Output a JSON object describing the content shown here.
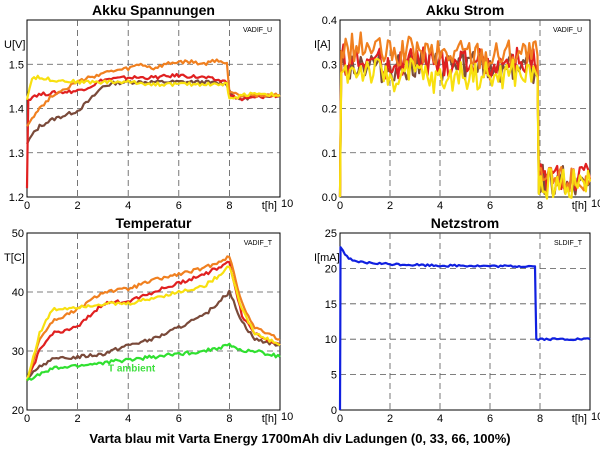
{
  "figure": {
    "caption": "Varta blau mit Varta Energy 1700mAh div Ladungen (0, 33, 66, 100%)"
  },
  "chart_data": [
    {
      "type": "line",
      "title": "Akku Spannungen",
      "ylabel": "U[V]",
      "xlabel": "t[h]",
      "tag": "VADIF_U",
      "xlim": [
        0,
        10
      ],
      "ylim": [
        1.2,
        1.6
      ],
      "xticks": [
        "0",
        "2",
        "4",
        "6",
        "8",
        "10"
      ],
      "yticks": [
        "1.2",
        "1.3",
        "1.4",
        "1.5"
      ],
      "grid": true,
      "series": [
        {
          "color": "#7a4a3a",
          "points": [
            [
              0,
              1.32
            ],
            [
              0.2,
              1.34
            ],
            [
              0.5,
              1.36
            ],
            [
              1,
              1.375
            ],
            [
              1.5,
              1.385
            ],
            [
              2,
              1.395
            ],
            [
              2.5,
              1.42
            ],
            [
              3,
              1.45
            ],
            [
              3.5,
              1.458
            ],
            [
              4,
              1.46
            ],
            [
              5,
              1.46
            ],
            [
              6,
              1.46
            ],
            [
              7,
              1.46
            ],
            [
              7.9,
              1.455
            ],
            [
              8,
              1.44
            ],
            [
              8.3,
              1.42
            ],
            [
              8.8,
              1.425
            ],
            [
              9.5,
              1.43
            ],
            [
              10,
              1.43
            ]
          ]
        },
        {
          "color": "#e02020",
          "points": [
            [
              0,
              1.22
            ],
            [
              0.05,
              1.42
            ],
            [
              0.3,
              1.43
            ],
            [
              1,
              1.435
            ],
            [
              2,
              1.44
            ],
            [
              2.5,
              1.45
            ],
            [
              3,
              1.465
            ],
            [
              4,
              1.47
            ],
            [
              5,
              1.47
            ],
            [
              6,
              1.475
            ],
            [
              7,
              1.47
            ],
            [
              7.9,
              1.46
            ],
            [
              8,
              1.43
            ],
            [
              8.5,
              1.42
            ],
            [
              9,
              1.425
            ],
            [
              10,
              1.43
            ]
          ]
        },
        {
          "color": "#f08020",
          "points": [
            [
              0,
              1.36
            ],
            [
              0.2,
              1.38
            ],
            [
              0.5,
              1.4
            ],
            [
              1,
              1.43
            ],
            [
              1.5,
              1.445
            ],
            [
              2,
              1.46
            ],
            [
              2.5,
              1.47
            ],
            [
              3,
              1.48
            ],
            [
              3.5,
              1.485
            ],
            [
              4,
              1.49
            ],
            [
              4.5,
              1.5
            ],
            [
              5,
              1.49
            ],
            [
              5.5,
              1.5
            ],
            [
              6,
              1.505
            ],
            [
              6.5,
              1.505
            ],
            [
              7,
              1.5
            ],
            [
              7.5,
              1.51
            ],
            [
              7.9,
              1.5
            ],
            [
              8,
              1.44
            ],
            [
              8.5,
              1.43
            ],
            [
              9,
              1.43
            ],
            [
              10,
              1.43
            ]
          ]
        },
        {
          "color": "#f8e010",
          "points": [
            [
              0,
              1.42
            ],
            [
              0.2,
              1.47
            ],
            [
              0.5,
              1.47
            ],
            [
              1,
              1.465
            ],
            [
              2,
              1.46
            ],
            [
              3,
              1.46
            ],
            [
              4,
              1.46
            ],
            [
              5,
              1.455
            ],
            [
              6,
              1.455
            ],
            [
              7,
              1.455
            ],
            [
              7.9,
              1.455
            ],
            [
              8,
              1.42
            ],
            [
              8.5,
              1.43
            ],
            [
              9,
              1.435
            ],
            [
              10,
              1.43
            ]
          ]
        }
      ]
    },
    {
      "type": "line",
      "title": "Akku Strom",
      "ylabel": "I[A]",
      "xlabel": "t[h]",
      "tag": "VADIF_U",
      "xlim": [
        0,
        10
      ],
      "ylim": [
        0,
        0.4
      ],
      "xticks": [
        "0",
        "2",
        "4",
        "6",
        "8",
        "10"
      ],
      "yticks": [
        "0.0",
        "0.1",
        "0.2",
        "0.3",
        "0.4"
      ],
      "grid": true,
      "series": [
        {
          "color": "#7a4a3a",
          "points": [
            [
              0,
              0.0
            ],
            [
              0.05,
              0.3
            ],
            [
              1,
              0.3
            ],
            [
              2,
              0.29
            ],
            [
              3,
              0.3
            ],
            [
              4,
              0.29
            ],
            [
              5,
              0.3
            ],
            [
              6,
              0.29
            ],
            [
              7,
              0.3
            ],
            [
              7.9,
              0.29
            ],
            [
              7.95,
              0.04
            ],
            [
              8.5,
              0.04
            ],
            [
              9,
              0.04
            ],
            [
              10,
              0.04
            ]
          ]
        },
        {
          "color": "#e02020",
          "points": [
            [
              0,
              0.0
            ],
            [
              0.05,
              0.31
            ],
            [
              1,
              0.31
            ],
            [
              2,
              0.3
            ],
            [
              3,
              0.31
            ],
            [
              4,
              0.3
            ],
            [
              5,
              0.31
            ],
            [
              6,
              0.3
            ],
            [
              7,
              0.31
            ],
            [
              7.9,
              0.3
            ],
            [
              7.95,
              0.04
            ],
            [
              10,
              0.04
            ]
          ]
        },
        {
          "color": "#f08020",
          "points": [
            [
              0,
              0.0
            ],
            [
              0.05,
              0.33
            ],
            [
              1,
              0.34
            ],
            [
              2,
              0.32
            ],
            [
              3,
              0.33
            ],
            [
              4,
              0.32
            ],
            [
              5,
              0.33
            ],
            [
              6,
              0.32
            ],
            [
              7,
              0.33
            ],
            [
              7.9,
              0.32
            ],
            [
              7.95,
              0.04
            ],
            [
              10,
              0.04
            ]
          ]
        },
        {
          "color": "#f8e010",
          "points": [
            [
              0,
              0.0
            ],
            [
              0.05,
              0.28
            ],
            [
              1,
              0.29
            ],
            [
              2,
              0.27
            ],
            [
              3,
              0.28
            ],
            [
              4,
              0.26
            ],
            [
              5,
              0.28
            ],
            [
              6,
              0.27
            ],
            [
              7,
              0.28
            ],
            [
              7.9,
              0.27
            ],
            [
              7.95,
              0.03
            ],
            [
              10,
              0.035
            ]
          ]
        }
      ]
    },
    {
      "type": "line",
      "title": "Temperatur",
      "ylabel": "T[C]",
      "xlabel": "t[h]",
      "tag": "VADIF_T",
      "xlim": [
        0,
        10
      ],
      "ylim": [
        20,
        50
      ],
      "xticks": [
        "0",
        "2",
        "4",
        "6",
        "8",
        "10"
      ],
      "yticks": [
        "20",
        "30",
        "40",
        "50"
      ],
      "grid": true,
      "annotation": {
        "text": "T ambient",
        "color": "#40e040",
        "x": 3.2,
        "y": 26.5
      },
      "series": [
        {
          "color": "#7a4a3a",
          "points": [
            [
              0,
              25
            ],
            [
              0.5,
              27.5
            ],
            [
              1,
              28.5
            ],
            [
              2,
              29
            ],
            [
              3,
              29.5
            ],
            [
              4,
              31
            ],
            [
              5,
              32
            ],
            [
              6,
              34
            ],
            [
              7,
              36
            ],
            [
              7.5,
              38
            ],
            [
              8,
              40
            ],
            [
              8.5,
              35
            ],
            [
              9,
              32
            ],
            [
              10,
              31
            ]
          ]
        },
        {
          "color": "#e02020",
          "points": [
            [
              0,
              25
            ],
            [
              0.5,
              30
            ],
            [
              1,
              33
            ],
            [
              2,
              34
            ],
            [
              2.5,
              36
            ],
            [
              3,
              38
            ],
            [
              4,
              38.5
            ],
            [
              5,
              40
            ],
            [
              6,
              41.5
            ],
            [
              7,
              43
            ],
            [
              7.5,
              44
            ],
            [
              8,
              45
            ],
            [
              8.5,
              36
            ],
            [
              9,
              33
            ],
            [
              10,
              31
            ]
          ]
        },
        {
          "color": "#f08020",
          "points": [
            [
              0,
              25
            ],
            [
              0.5,
              32
            ],
            [
              1,
              35
            ],
            [
              2,
              37
            ],
            [
              3,
              40
            ],
            [
              4,
              40.5
            ],
            [
              5,
              42
            ],
            [
              6,
              43
            ],
            [
              7,
              44
            ],
            [
              7.5,
              45
            ],
            [
              8,
              46
            ],
            [
              8.5,
              38
            ],
            [
              9,
              34
            ],
            [
              10,
              32
            ]
          ]
        },
        {
          "color": "#f8e010",
          "points": [
            [
              0,
              25
            ],
            [
              0.5,
              33
            ],
            [
              1,
              37
            ],
            [
              2,
              37.5
            ],
            [
              3,
              38
            ],
            [
              4,
              38
            ],
            [
              5,
              39
            ],
            [
              6,
              40
            ],
            [
              7,
              41
            ],
            [
              7.5,
              42.5
            ],
            [
              8,
              44.5
            ],
            [
              8.5,
              37
            ],
            [
              9,
              33
            ],
            [
              10,
              31
            ]
          ]
        },
        {
          "color": "#30e030",
          "points": [
            [
              0,
              25
            ],
            [
              1,
              27
            ],
            [
              2,
              27.5
            ],
            [
              3,
              28
            ],
            [
              4,
              28.5
            ],
            [
              5,
              29
            ],
            [
              6,
              29.5
            ],
            [
              7,
              30
            ],
            [
              7.5,
              30.5
            ],
            [
              8,
              31
            ],
            [
              8.5,
              30
            ],
            [
              9,
              30
            ],
            [
              10,
              29
            ]
          ]
        }
      ]
    },
    {
      "type": "line",
      "title": "Netzstrom",
      "ylabel": "I[mA]",
      "xlabel": "t[h]",
      "tag": "SLDIF_T",
      "xlim": [
        0,
        10
      ],
      "ylim": [
        0,
        25
      ],
      "xticks": [
        "0",
        "2",
        "4",
        "6",
        "8",
        "10"
      ],
      "yticks": [
        "0",
        "5",
        "10",
        "15",
        "20",
        "25"
      ],
      "grid": true,
      "series": [
        {
          "color": "#1020e0",
          "points": [
            [
              0,
              0
            ],
            [
              0.02,
              23
            ],
            [
              0.2,
              22
            ],
            [
              0.5,
              21
            ],
            [
              1,
              20.8
            ],
            [
              2,
              20.6
            ],
            [
              3,
              20.5
            ],
            [
              4,
              20.4
            ],
            [
              5,
              20.4
            ],
            [
              6,
              20.3
            ],
            [
              7,
              20.3
            ],
            [
              7.8,
              20.3
            ],
            [
              7.85,
              10
            ],
            [
              8.5,
              10
            ],
            [
              9,
              10
            ],
            [
              10,
              10
            ]
          ]
        }
      ]
    }
  ]
}
